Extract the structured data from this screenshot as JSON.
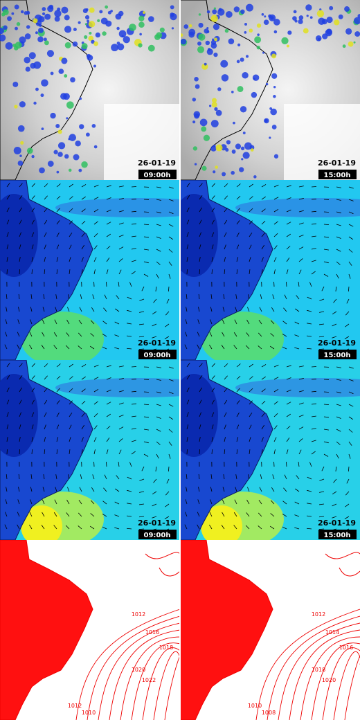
{
  "panels": [
    {
      "date": "26-01-19",
      "time": "09:00h"
    },
    {
      "date": "26-01-19",
      "time": "15:00h"
    },
    {
      "date": "26-01-19",
      "time": "09:00h"
    },
    {
      "date": "26-01-19",
      "time": "15:00h"
    },
    {
      "date": "26-01-19",
      "time": "09:00h"
    },
    {
      "date": "26-01-19",
      "time": "15:00h"
    }
  ],
  "isobar_labels": [
    [
      "1012",
      "1016",
      "1018",
      "1020",
      "1022",
      "1012",
      "1010"
    ],
    [
      "1012",
      "1014",
      "1016",
      "1018",
      "1020",
      "1010",
      "1008"
    ]
  ]
}
